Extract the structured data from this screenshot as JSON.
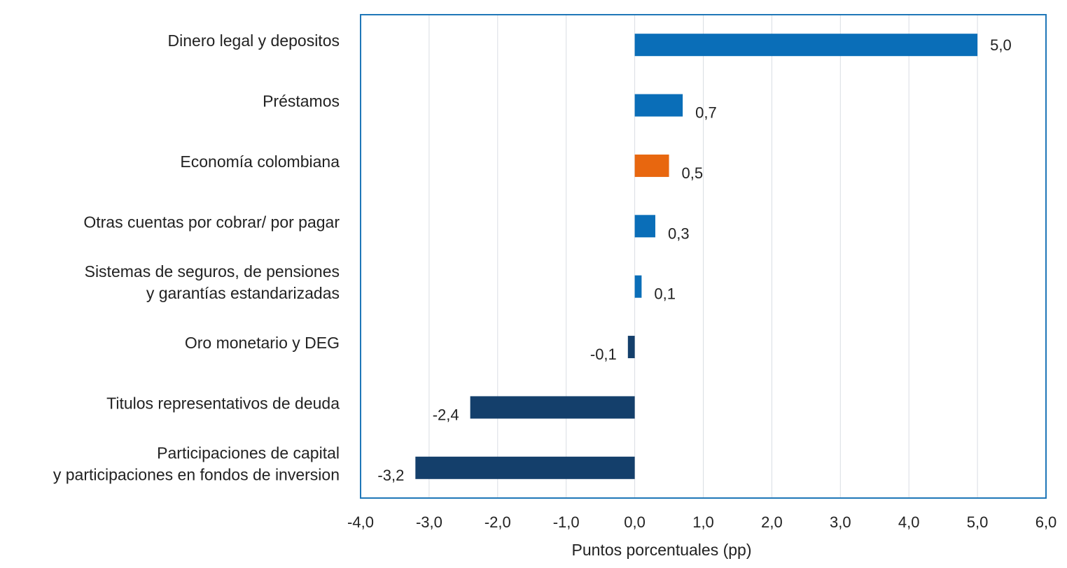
{
  "chart_data": {
    "type": "bar",
    "orientation": "horizontal",
    "categories": [
      [
        "Dinero legal y depositos"
      ],
      [
        "Préstamos"
      ],
      [
        "Economía colombiana"
      ],
      [
        "Otras cuentas por cobrar/ por pagar"
      ],
      [
        "Sistemas de seguros, de pensiones",
        "y garantías estandarizadas"
      ],
      [
        "Oro monetario y DEG"
      ],
      [
        "Titulos representativos de deuda"
      ],
      [
        "Participaciones de capital",
        "y participaciones en fondos de inversion"
      ]
    ],
    "values": [
      5.0,
      0.7,
      0.5,
      0.3,
      0.1,
      -0.1,
      -2.4,
      -3.2
    ],
    "value_labels": [
      "5,0",
      "0,7",
      "0,5",
      "0,3",
      "0,1",
      "-0,1",
      "-2,4",
      "-3,2"
    ],
    "bar_colors": [
      "#0a6eb8",
      "#0a6eb8",
      "#e8670f",
      "#0a6eb8",
      "#0a6eb8",
      "#143f6b",
      "#143f6b",
      "#143f6b"
    ],
    "xlabel": "Puntos porcentuales (pp)",
    "xlim": [
      -4,
      6
    ],
    "xticks": [
      -4,
      -3,
      -2,
      -1,
      0,
      1,
      2,
      3,
      4,
      5,
      6
    ],
    "xtick_labels": [
      "-4,0",
      "-3,0",
      "-2,0",
      "-1,0",
      "0,0",
      "1,0",
      "2,0",
      "3,0",
      "4,0",
      "5,0",
      "6,0"
    ],
    "grid": "vertical",
    "colors": {
      "frame": "#1f77b8",
      "grid": "#d9dde3",
      "text": "#222222"
    }
  }
}
